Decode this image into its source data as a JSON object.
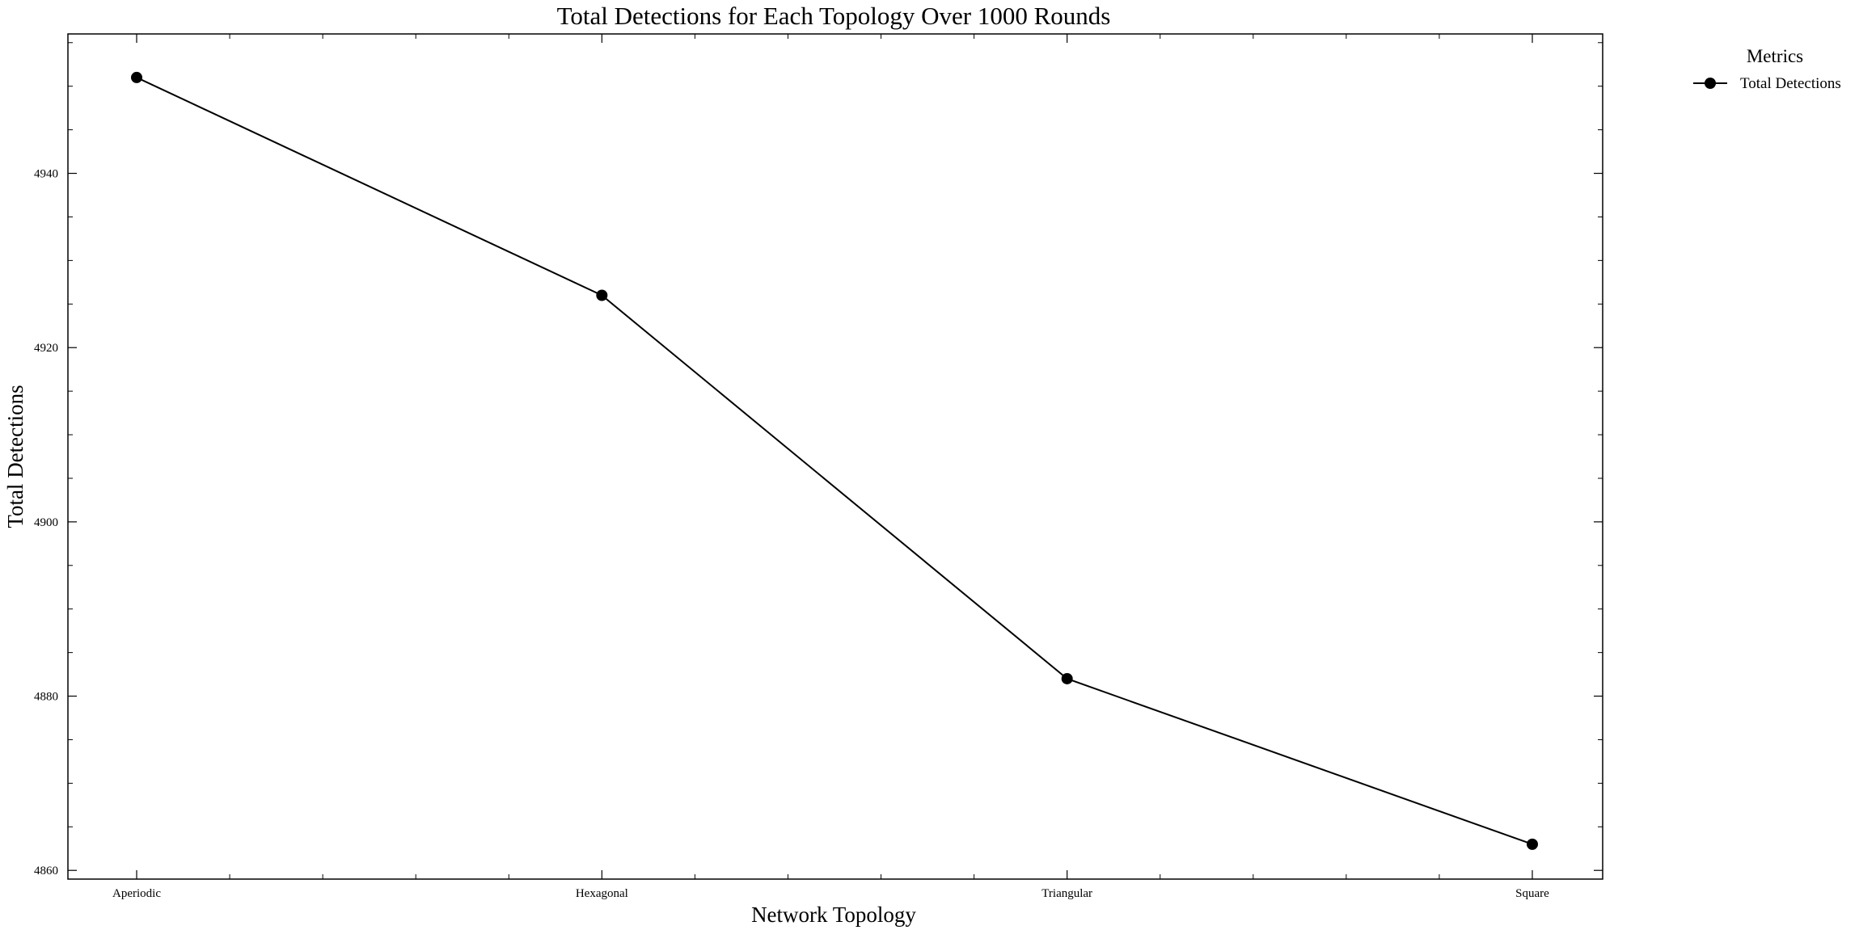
{
  "chart_data": {
    "type": "line",
    "title": "Total Detections for Each Topology Over 1000 Rounds",
    "xlabel": "Network Topology",
    "ylabel": "Total Detections",
    "categories": [
      "Aperiodic",
      "Hexagonal",
      "Triangular",
      "Square"
    ],
    "series": [
      {
        "name": "Total Detections",
        "values": [
          4951,
          4926,
          4882,
          4863
        ],
        "color": "#000000",
        "marker": "circle"
      }
    ],
    "ylim": [
      4859,
      4956
    ],
    "yticks": [
      4860,
      4880,
      4900,
      4920,
      4940
    ],
    "grid": false,
    "legend": {
      "title": "Metrics",
      "placement": "outside-top-right"
    }
  }
}
